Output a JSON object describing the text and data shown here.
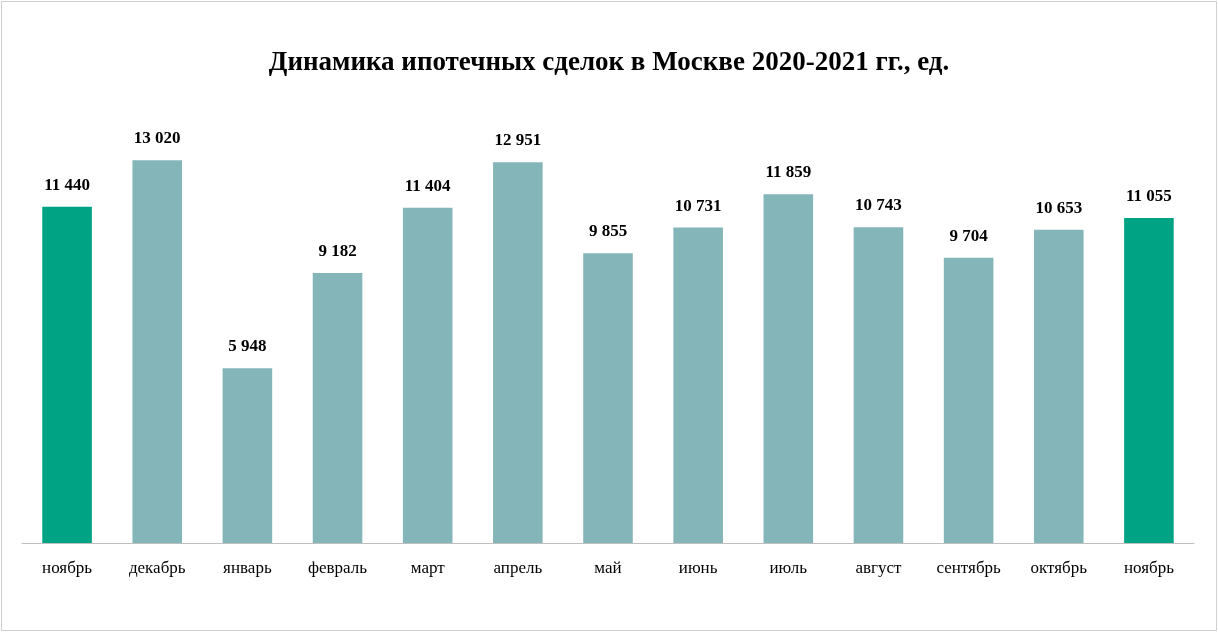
{
  "chart_data": {
    "type": "bar",
    "title": "Динамика ипотечных сделок в Москве 2020-2021 гг., ед.",
    "categories": [
      "ноябрь",
      "декабрь",
      "январь",
      "февраль",
      "март",
      "апрель",
      "май",
      "июнь",
      "июль",
      "август",
      "сентябрь",
      "октябрь",
      "ноябрь"
    ],
    "values": [
      11440,
      13020,
      5948,
      9182,
      11404,
      12951,
      9855,
      10731,
      11859,
      10743,
      9704,
      10653,
      11055
    ],
    "colors": [
      "#00a383",
      "#84b5b9",
      "#84b5b9",
      "#84b5b9",
      "#84b5b9",
      "#84b5b9",
      "#84b5b9",
      "#84b5b9",
      "#84b5b9",
      "#84b5b9",
      "#84b5b9",
      "#84b5b9",
      "#00a383"
    ],
    "value_labels": [
      "11 440",
      "13 020",
      "5 948",
      "9 182",
      "11 404",
      "12 951",
      "9 855",
      "10 731",
      "11 859",
      "10 743",
      "9 704",
      "10 653",
      "11 055"
    ]
  }
}
